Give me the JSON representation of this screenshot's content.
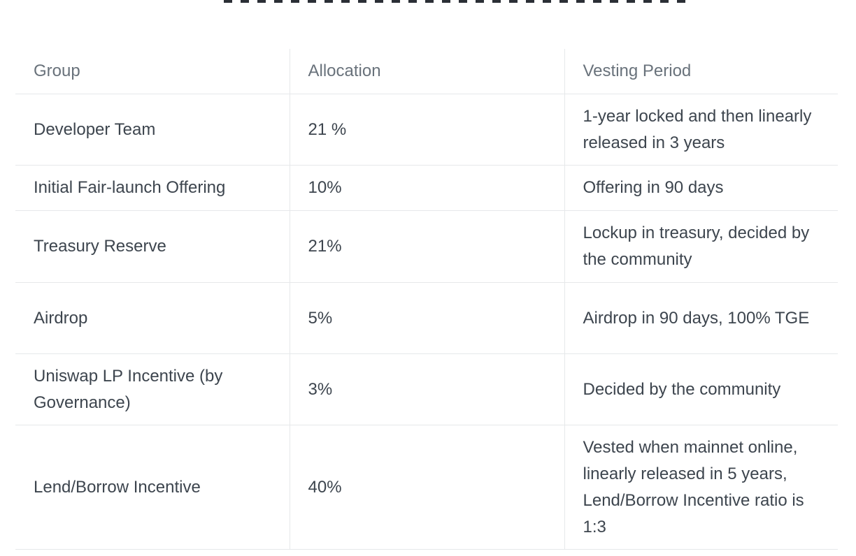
{
  "table": {
    "headers": {
      "group": "Group",
      "allocation": "Allocation",
      "vesting": "Vesting Period"
    },
    "rows": [
      {
        "group": "Developer Team",
        "allocation": "21 %",
        "vesting": "1-year locked and then linearly released in 3 years"
      },
      {
        "group": "Initial Fair-launch Offering",
        "allocation": "10%",
        "vesting": "Offering in 90 days"
      },
      {
        "group": "Treasury Reserve",
        "allocation": "21%",
        "vesting": "Lockup in treasury, decided by the community"
      },
      {
        "group": "Airdrop",
        "allocation": "5%",
        "vesting": "Airdrop in 90 days, 100% TGE"
      },
      {
        "group": "Uniswap LP Incentive (by Governance)",
        "allocation": "3%",
        "vesting": "Decided by the community"
      },
      {
        "group": "Lend/Borrow Incentive",
        "allocation": "40%",
        "vesting": "Vested when mainnet online, linearly released in 5 years, Lend/Borrow Incentive ratio is 1:3"
      }
    ]
  }
}
